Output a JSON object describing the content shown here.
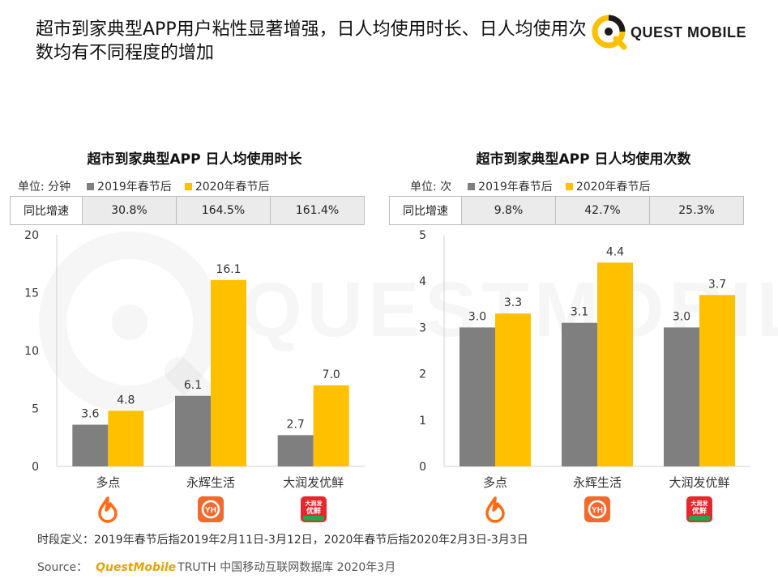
{
  "header": {
    "title": "超市到家典型APP用户粘性显著增强，日人均使用时长、日人均使用次数均有不同程度的增加",
    "logo_text": "QUEST MOBILE"
  },
  "watermark": {
    "text": "QUESTMOBILE"
  },
  "legend": {
    "series_2019": "2019年春节后",
    "series_2020": "2020年春节后"
  },
  "colors": {
    "series_2019": "#7f7f7f",
    "series_2020": "#ffc000",
    "brand": "#ffc000"
  },
  "chart_data": [
    {
      "type": "bar",
      "title": "超市到家典型APP 日人均使用时长",
      "unit": "单位: 分钟",
      "categories": [
        "多点",
        "永辉生活",
        "大润发优鲜"
      ],
      "series": [
        {
          "name": "2019年春节后",
          "values": [
            3.6,
            6.1,
            2.7
          ]
        },
        {
          "name": "2020年春节后",
          "values": [
            4.8,
            16.1,
            7.0
          ]
        }
      ],
      "value_labels_2019": [
        "3.6",
        "6.1",
        "2.7"
      ],
      "value_labels_2020": [
        "4.8",
        "16.1",
        "7.0"
      ],
      "ylim": [
        0,
        20
      ],
      "yticks": [
        "0",
        "5",
        "10",
        "15",
        "20"
      ],
      "yoy_label": "同比增速",
      "yoy": [
        "30.8%",
        "164.5%",
        "161.4%"
      ]
    },
    {
      "type": "bar",
      "title": "超市到家典型APP 日人均使用次数",
      "unit": "单位: 次",
      "categories": [
        "多点",
        "永辉生活",
        "大润发优鲜"
      ],
      "series": [
        {
          "name": "2019年春节后",
          "values": [
            3.0,
            3.1,
            3.0
          ]
        },
        {
          "name": "2020年春节后",
          "values": [
            3.3,
            4.4,
            3.7
          ]
        }
      ],
      "value_labels_2019": [
        "3.0",
        "3.1",
        "3.0"
      ],
      "value_labels_2020": [
        "3.3",
        "4.4",
        "3.7"
      ],
      "ylim": [
        0,
        5
      ],
      "yticks": [
        "0",
        "1",
        "2",
        "3",
        "4",
        "5"
      ],
      "yoy_label": "同比增速",
      "yoy": [
        "9.8%",
        "42.7%",
        "25.3%"
      ]
    }
  ],
  "app_icons": [
    {
      "name": "duodian-icon",
      "text": ""
    },
    {
      "name": "yonghui-icon",
      "text": "YH"
    },
    {
      "name": "rtmart-icon",
      "text": "大润发 优鲜"
    }
  ],
  "footer": {
    "footnote": "时段定义：2019年春节后指2019年2月11日-3月12日，2020年春节后指2020年2月3日-3月3日",
    "source_prefix": "Source：",
    "source_brand": "QuestMobile",
    "source_rest": "TRUTH 中国移动互联网数据库 2020年3月"
  }
}
